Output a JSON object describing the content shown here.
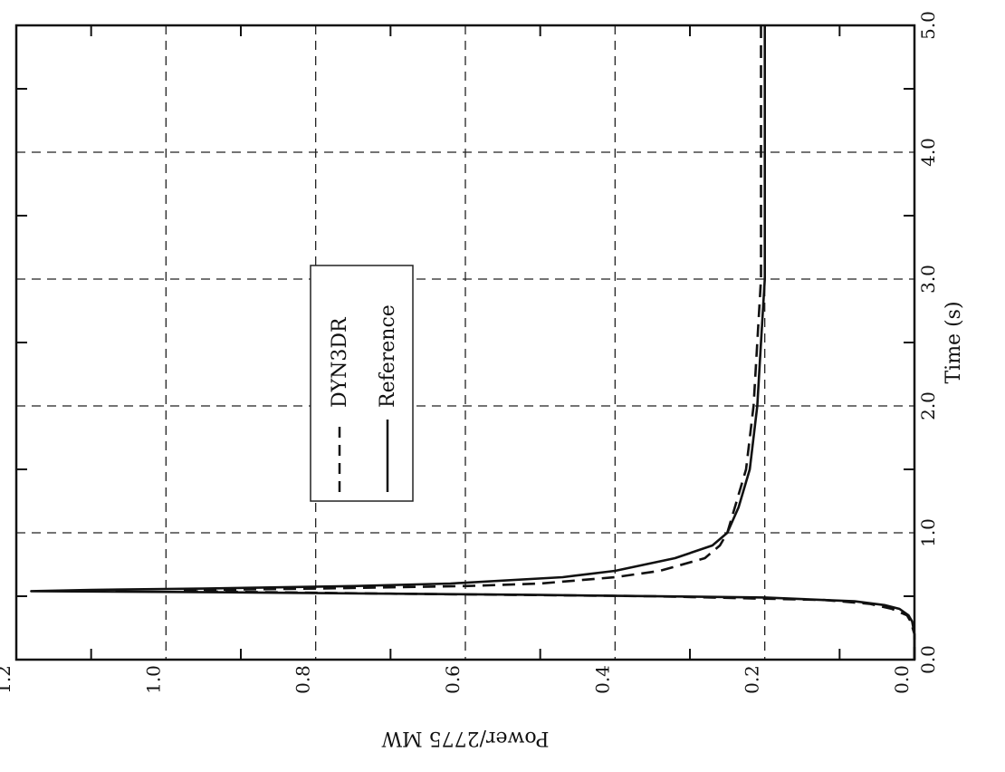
{
  "chart_data": {
    "type": "line",
    "rotation_deg": 90,
    "xlabel": "Time (s)",
    "ylabel": "Power/2775 MW",
    "xlim": [
      0.0,
      5.0
    ],
    "ylim": [
      0.0,
      1.2
    ],
    "x_ticks": [
      "0.0",
      "1.0",
      "2.0",
      "3.0",
      "4.0",
      "5.0"
    ],
    "y_ticks": [
      "0.0",
      "0.2",
      "0.4",
      "0.6",
      "0.8",
      "1.0",
      "1.2"
    ],
    "grid": true,
    "legend_position": "center",
    "series": [
      {
        "name": "DYN3DR",
        "style": "dashed",
        "x": [
          0.0,
          0.2,
          0.3,
          0.35,
          0.4,
          0.44,
          0.47,
          0.5,
          0.52,
          0.54,
          0.55,
          0.56,
          0.58,
          0.6,
          0.65,
          0.7,
          0.8,
          0.9,
          1.0,
          1.2,
          1.5,
          2.0,
          2.5,
          3.0,
          4.0,
          5.0
        ],
        "y": [
          0.0,
          0.0,
          0.005,
          0.01,
          0.03,
          0.06,
          0.12,
          0.35,
          0.7,
          0.98,
          0.95,
          0.8,
          0.6,
          0.5,
          0.4,
          0.34,
          0.28,
          0.26,
          0.25,
          0.24,
          0.225,
          0.215,
          0.21,
          0.205,
          0.205,
          0.205
        ]
      },
      {
        "name": "Reference",
        "style": "solid",
        "x": [
          0.0,
          0.2,
          0.3,
          0.35,
          0.4,
          0.43,
          0.46,
          0.49,
          0.51,
          0.53,
          0.54,
          0.55,
          0.56,
          0.58,
          0.6,
          0.65,
          0.7,
          0.8,
          0.9,
          1.0,
          1.2,
          1.5,
          2.0,
          2.5,
          3.0,
          4.0,
          5.0
        ],
        "y": [
          0.0,
          0.0,
          0.003,
          0.008,
          0.02,
          0.04,
          0.08,
          0.2,
          0.5,
          0.9,
          1.18,
          1.1,
          0.95,
          0.75,
          0.62,
          0.47,
          0.4,
          0.32,
          0.27,
          0.25,
          0.235,
          0.22,
          0.21,
          0.205,
          0.2,
          0.2,
          0.2
        ]
      }
    ]
  }
}
